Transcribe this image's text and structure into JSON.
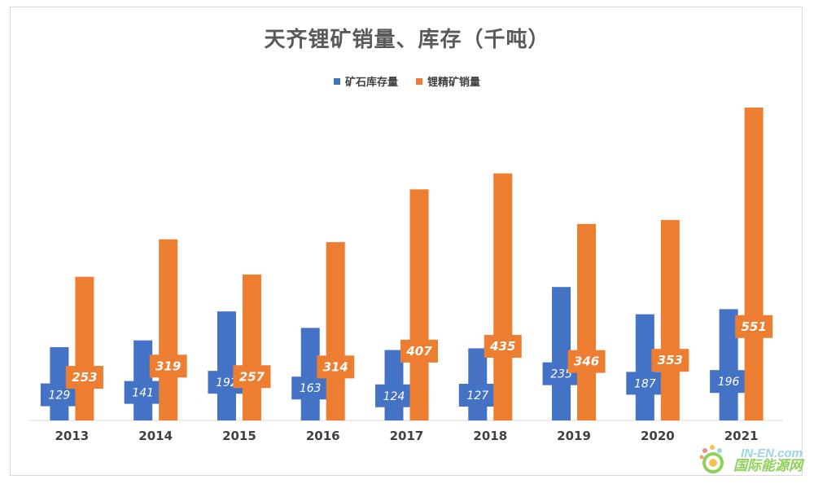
{
  "chart_data": {
    "type": "bar",
    "title": "天齐锂矿销量、库存（千吨）",
    "categories": [
      "2013",
      "2014",
      "2015",
      "2016",
      "2017",
      "2018",
      "2019",
      "2020",
      "2021"
    ],
    "series": [
      {
        "name": "矿石库存量",
        "color": "#4472c4",
        "values": [
          129,
          141,
          192,
          163,
          124,
          127,
          235,
          187,
          196
        ]
      },
      {
        "name": "锂精矿销量",
        "color": "#ed7d31",
        "values": [
          253,
          319,
          257,
          314,
          407,
          435,
          346,
          353,
          551
        ]
      }
    ],
    "ylim": [
      0,
      580
    ],
    "grid": false,
    "legend_position": "top"
  },
  "watermark": {
    "brand": "IN-EN.com",
    "name": "国际能源网"
  }
}
